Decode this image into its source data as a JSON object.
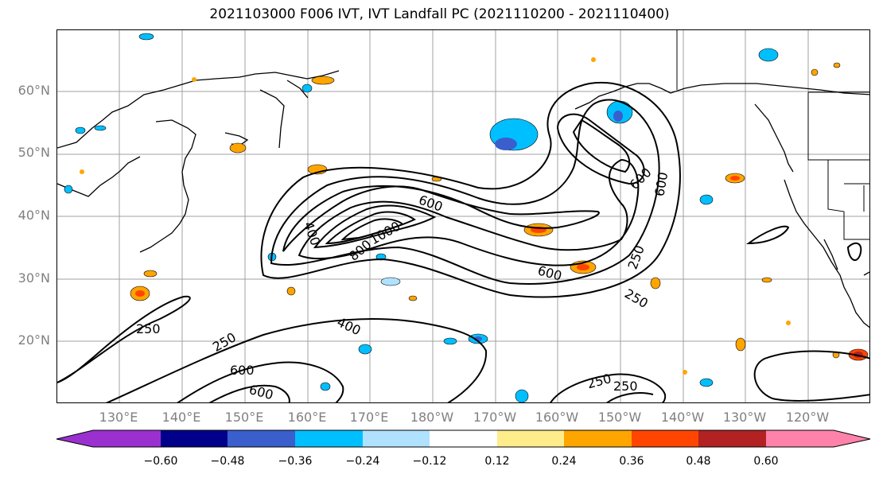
{
  "title": "2021103000 F006 IVT, IVT Landfall PC (2021110200 - 2021110400)",
  "lat_labels": [
    "60°N",
    "50°N",
    "40°N",
    "30°N",
    "20°N"
  ],
  "lon_labels": [
    "130°E",
    "140°E",
    "150°E",
    "160°E",
    "170°E",
    "180°W",
    "170°W",
    "160°W",
    "150°W",
    "140°W",
    "130°W",
    "120°W"
  ],
  "colorbar": {
    "ticks": [
      "−0.60",
      "−0.48",
      "−0.36",
      "−0.24",
      "−0.12",
      "0.12",
      "0.24",
      "0.36",
      "0.48",
      "0.60"
    ],
    "colors": [
      "#9b30d0",
      "#00008b",
      "#3a5fcd",
      "#00bfff",
      "#b0e2ff",
      "#ffffff",
      "#ffec8b",
      "#ffa500",
      "#ff4500",
      "#b22222",
      "#ff82ab"
    ]
  },
  "contour_labels": [
    "250",
    "250",
    "250",
    "250",
    "250",
    "250",
    "400",
    "400",
    "600",
    "600",
    "600",
    "600",
    "600",
    "800",
    "1000",
    "600"
  ]
}
